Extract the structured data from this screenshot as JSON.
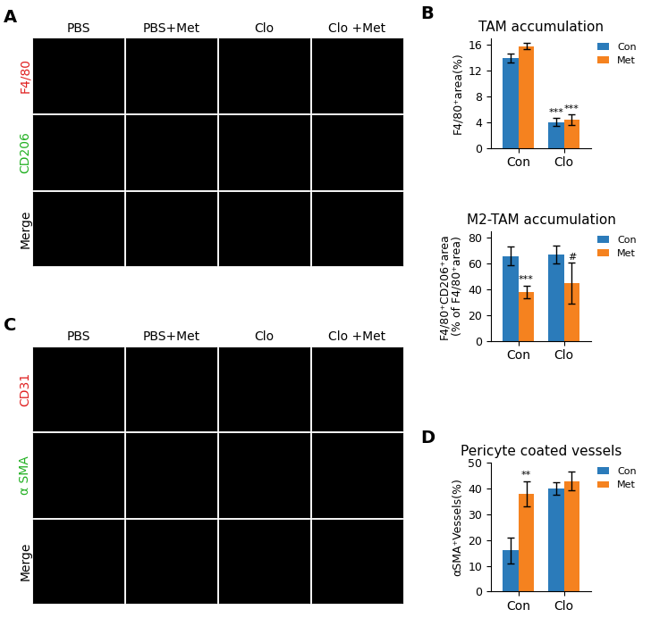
{
  "image_panels": [
    {
      "label": "A",
      "columns": [
        "PBS",
        "PBS+Met",
        "Clo",
        "Clo +Met"
      ],
      "rows": [
        {
          "name": "F4/80",
          "color": "#e02020"
        },
        {
          "name": "CD206",
          "color": "#22b022"
        },
        {
          "name": "Merge",
          "color": "#000000"
        }
      ]
    },
    {
      "label": "C",
      "columns": [
        "PBS",
        "PBS+Met",
        "Clo",
        "Clo +Met"
      ],
      "rows": [
        {
          "name": "CD31",
          "color": "#e02020"
        },
        {
          "name": "α SMA",
          "color": "#22b022"
        },
        {
          "name": "Merge",
          "color": "#000000"
        }
      ]
    }
  ],
  "chart_data": [
    {
      "type": "bar",
      "panel": "B",
      "title": "TAM accumulation",
      "y_label": "F4/80⁺area(%)",
      "categories": [
        "Con",
        "Clo"
      ],
      "series": [
        {
          "name": "Con",
          "color": "#2b7bba",
          "values": [
            14,
            4
          ],
          "errors": [
            0.7,
            0.6
          ],
          "significance": [
            null,
            "***"
          ]
        },
        {
          "name": "Met",
          "color": "#f5821f",
          "values": [
            15.8,
            4.4
          ],
          "errors": [
            0.5,
            0.8
          ],
          "significance": [
            null,
            "***"
          ]
        }
      ],
      "ylim": [
        0,
        17
      ],
      "yticks": [
        0,
        4,
        8,
        12,
        16
      ],
      "legend": "upper right"
    },
    {
      "type": "bar",
      "panel": null,
      "title": "M2-TAM accumulation",
      "y_label": "F4/80⁺CD206⁺area\n(% of F4/80⁺area)",
      "categories": [
        "Con",
        "Clo"
      ],
      "series": [
        {
          "name": "Con",
          "color": "#2b7bba",
          "values": [
            66,
            67
          ],
          "errors": [
            7,
            7
          ],
          "significance": [
            null,
            null
          ]
        },
        {
          "name": "Met",
          "color": "#f5821f",
          "values": [
            38,
            45
          ],
          "errors": [
            5,
            16
          ],
          "significance": [
            "***",
            "#"
          ]
        }
      ],
      "ylim": [
        0,
        85
      ],
      "yticks": [
        0,
        20,
        40,
        60,
        80
      ],
      "legend": "upper right"
    },
    {
      "type": "bar",
      "panel": "D",
      "title": "Pericyte coated vessels",
      "y_label": "αSMA⁺Vessels(%)",
      "categories": [
        "Con",
        "Clo"
      ],
      "series": [
        {
          "name": "Con",
          "color": "#2b7bba",
          "values": [
            16,
            40
          ],
          "errors": [
            5,
            2.5
          ],
          "significance": [
            null,
            null
          ]
        },
        {
          "name": "Met",
          "color": "#f5821f",
          "values": [
            38,
            43
          ],
          "errors": [
            5,
            3.5
          ],
          "significance": [
            "**",
            null
          ]
        }
      ],
      "ylim": [
        0,
        50
      ],
      "yticks": [
        0,
        10,
        20,
        30,
        40,
        50
      ],
      "legend": "upper right"
    }
  ]
}
